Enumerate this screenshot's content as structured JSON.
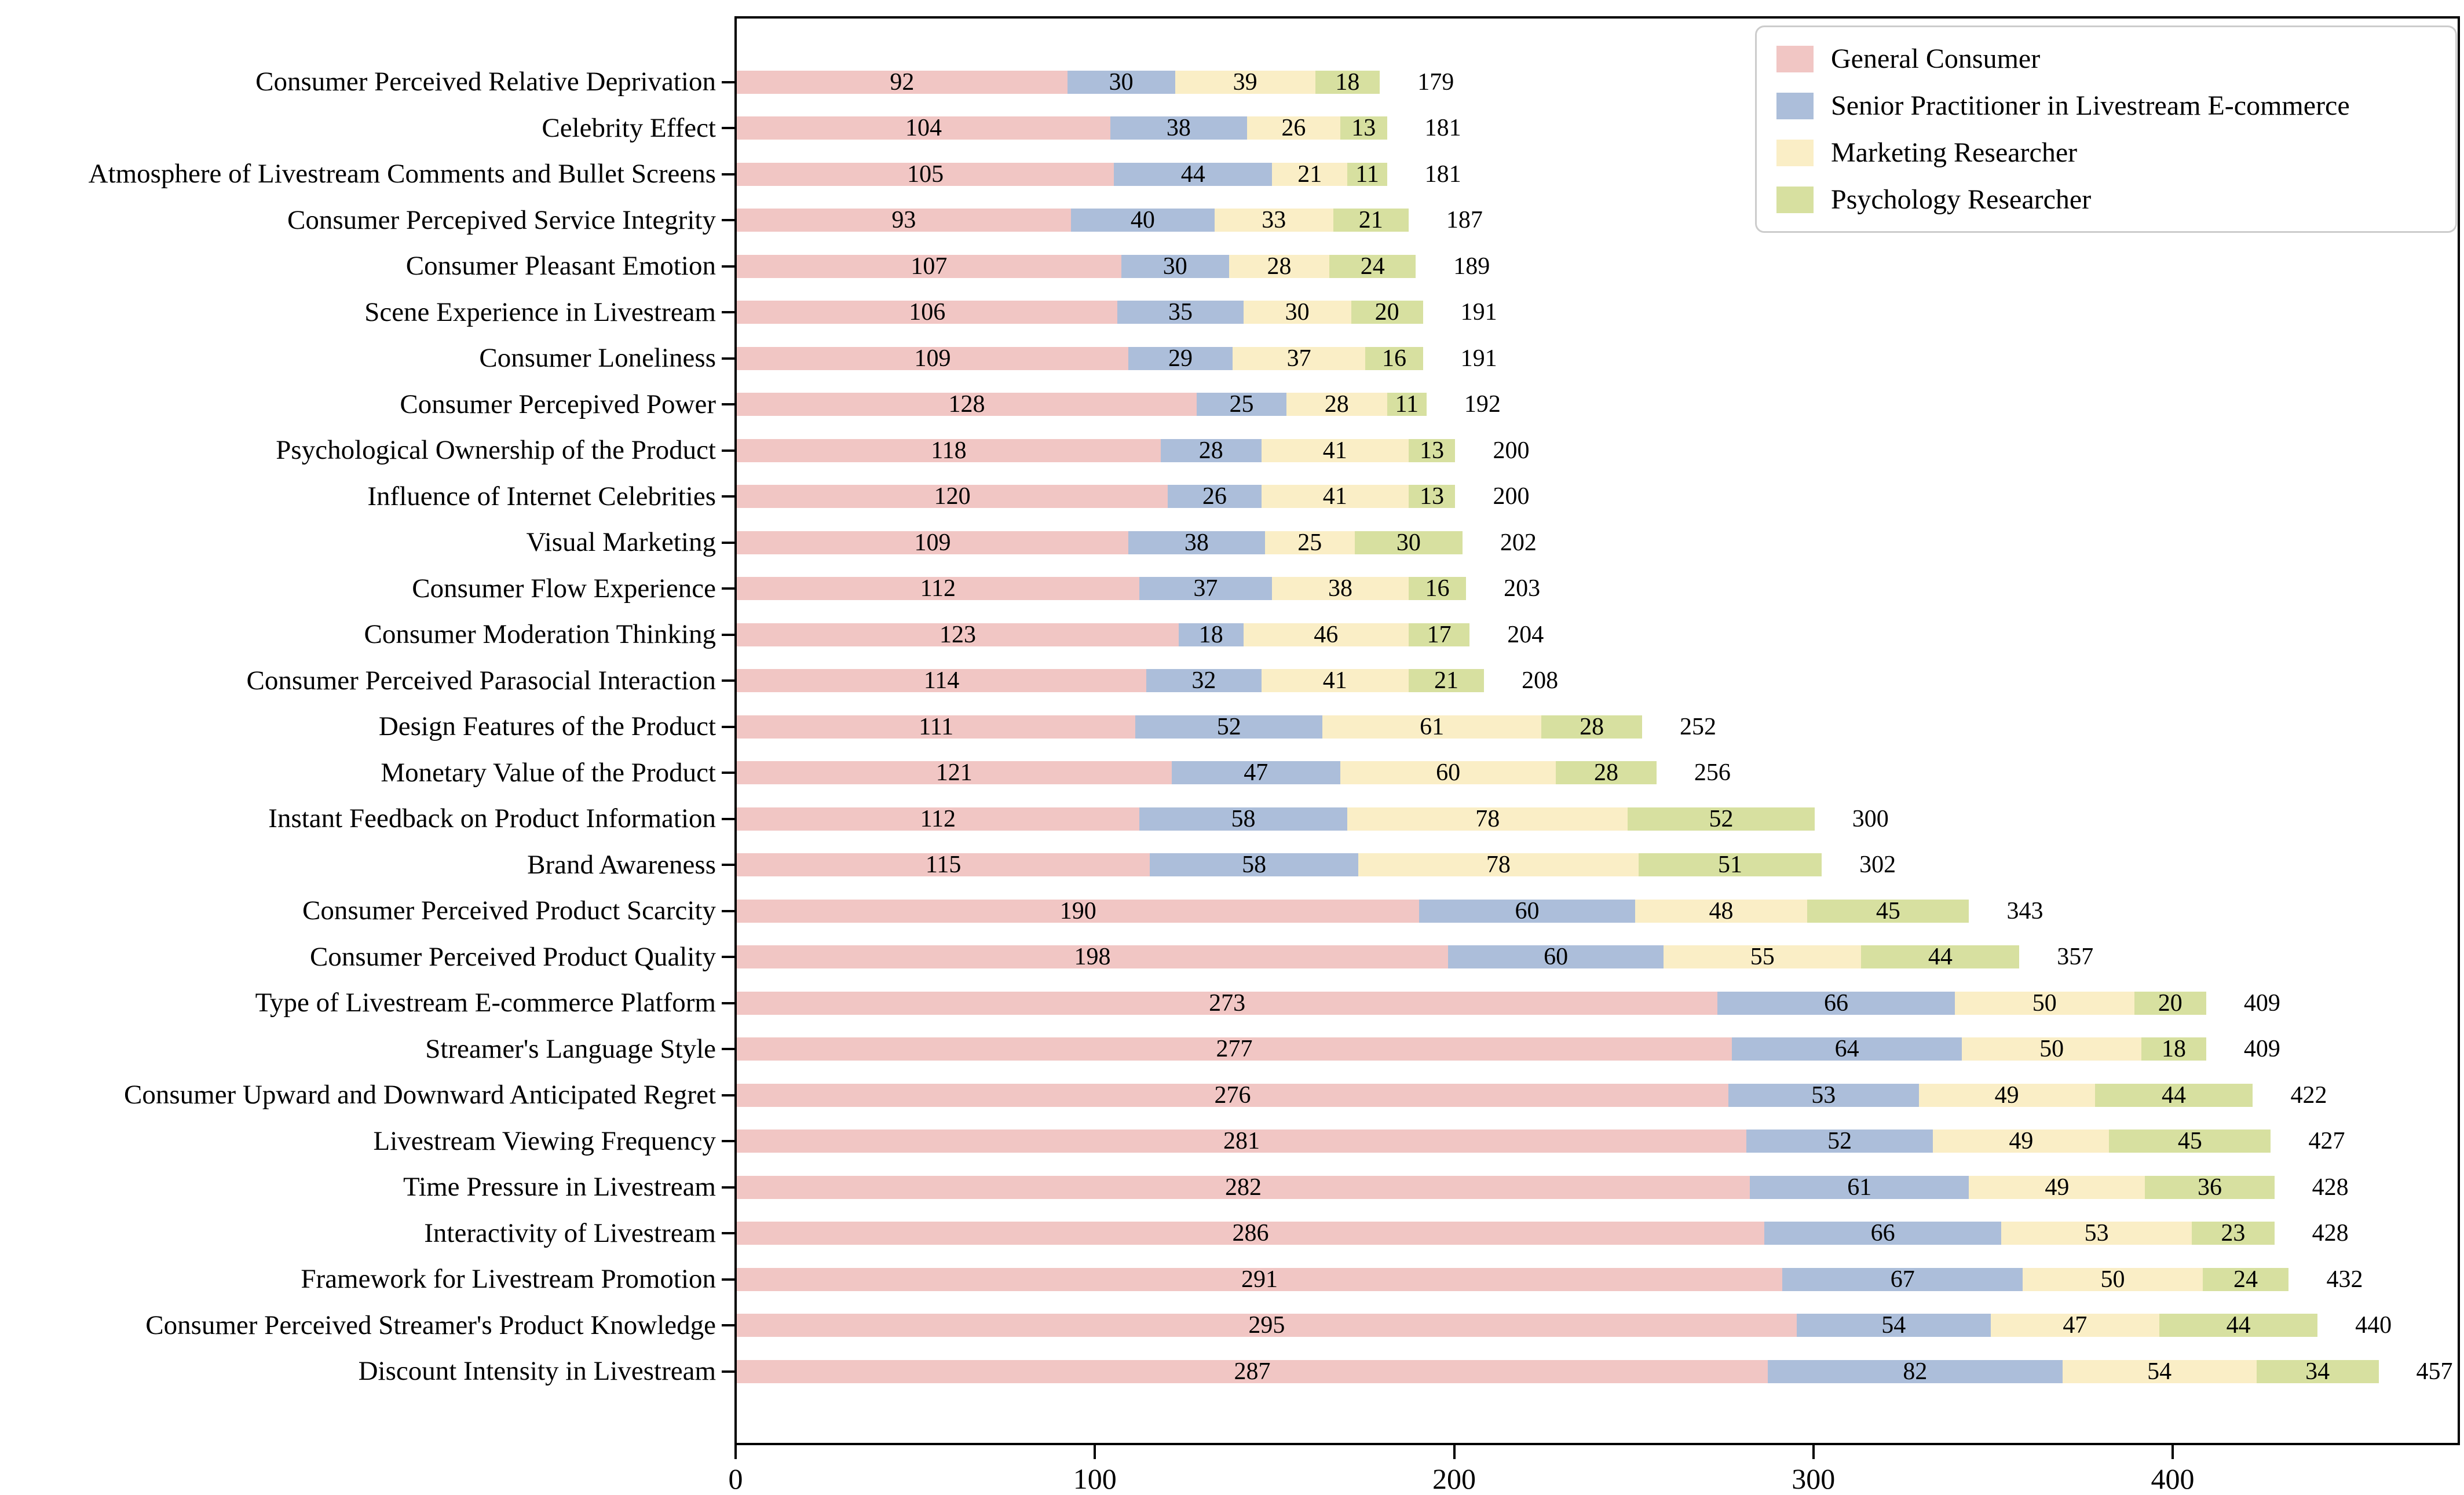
{
  "chart_data": {
    "type": "bar",
    "orientation": "horizontal",
    "stacked": true,
    "title": "",
    "xlabel": "",
    "ylabel": "",
    "grid": false,
    "legend_position": "upper right",
    "x_ticks": [
      0,
      100,
      200,
      300,
      400
    ],
    "xlim": [
      0,
      479
    ],
    "categories": [
      "Consumer Perceived Relative Deprivation",
      "Celebrity Effect",
      "Atmosphere of Livestream Comments and Bullet Screens",
      "Consumer Percepived Service Integrity",
      "Consumer Pleasant Emotion",
      "Scene Experience in Livestream",
      "Consumer Loneliness",
      "Consumer Percepived Power",
      "Psychological Ownership of the Product",
      "Influence of Internet Celebrities",
      "Visual Marketing",
      "Consumer Flow Experience",
      "Consumer Moderation Thinking",
      "Consumer Perceived Parasocial Interaction",
      "Design Features of the Product",
      "Monetary Value of the Product",
      "Instant Feedback on Product Information",
      "Brand Awareness",
      "Consumer Perceived Product Scarcity",
      "Consumer Perceived Product Quality",
      "Type of Livestream E-commerce Platform",
      "Streamer's Language Style",
      "Consumer Upward and Downward Anticipated Regret",
      "Livestream Viewing Frequency",
      "Time Pressure in Livestream",
      "Interactivity of Livestream",
      "Framework for Livestream Promotion",
      "Consumer Perceived Streamer's Product Knowledge",
      "Discount Intensity in Livestream"
    ],
    "series": [
      {
        "name": "General Consumer",
        "color": "#F1C6C4",
        "values": [
          92,
          104,
          105,
          93,
          107,
          106,
          109,
          128,
          118,
          120,
          109,
          112,
          123,
          114,
          111,
          121,
          112,
          115,
          190,
          198,
          273,
          277,
          276,
          281,
          282,
          286,
          291,
          295,
          287
        ]
      },
      {
        "name": "Senior Practitioner in Livestream E-commerce",
        "color": "#ACBEDA",
        "values": [
          30,
          38,
          44,
          40,
          30,
          35,
          29,
          25,
          28,
          26,
          38,
          37,
          18,
          32,
          52,
          47,
          58,
          58,
          60,
          60,
          66,
          64,
          53,
          52,
          61,
          66,
          67,
          54,
          82
        ]
      },
      {
        "name": "Marketing Researcher",
        "color": "#FAEEC6",
        "values": [
          39,
          26,
          21,
          33,
          28,
          30,
          37,
          28,
          41,
          41,
          25,
          38,
          46,
          41,
          61,
          60,
          78,
          78,
          48,
          55,
          50,
          50,
          49,
          49,
          49,
          53,
          50,
          47,
          54
        ]
      },
      {
        "name": "Psychology Researcher",
        "color": "#D7E0A0",
        "values": [
          18,
          13,
          11,
          21,
          24,
          20,
          16,
          11,
          13,
          13,
          30,
          16,
          17,
          21,
          28,
          28,
          52,
          51,
          45,
          44,
          20,
          18,
          44,
          45,
          36,
          23,
          24,
          44,
          34
        ]
      }
    ],
    "totals": [
      179,
      181,
      181,
      187,
      189,
      191,
      191,
      192,
      200,
      200,
      202,
      203,
      204,
      208,
      252,
      256,
      300,
      302,
      343,
      357,
      409,
      409,
      422,
      427,
      428,
      428,
      432,
      440,
      457
    ]
  }
}
